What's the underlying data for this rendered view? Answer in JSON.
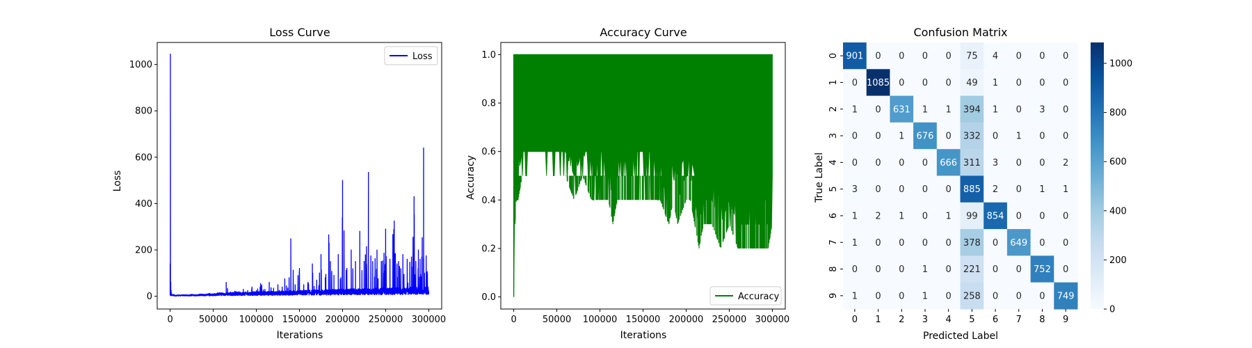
{
  "chart_data": [
    {
      "type": "line",
      "title": "Loss Curve",
      "xlabel": "Iterations",
      "ylabel": "Loss",
      "xlim": [
        -15000,
        315000
      ],
      "ylim": [
        -55,
        1095
      ],
      "xticks": [
        0,
        50000,
        100000,
        150000,
        200000,
        250000,
        300000
      ],
      "yticks": [
        0,
        200,
        400,
        600,
        800,
        1000
      ],
      "legend": "top-right",
      "grid": false,
      "series": [
        {
          "name": "Loss",
          "color": "#0000ff",
          "x": [
            0,
            300,
            700,
            1200,
            2000,
            3000,
            4000,
            6000,
            9000,
            12000,
            16000,
            20000,
            25000,
            30000,
            35000,
            40000,
            45000,
            50000,
            55000,
            60000,
            63000,
            65000,
            70000,
            75000,
            80000,
            85000,
            90000,
            95000,
            100000,
            105000,
            110000,
            115000,
            120000,
            125000,
            130000,
            133000,
            135000,
            138000,
            140000,
            145000,
            150000,
            155000,
            160000,
            165000,
            170000,
            175000,
            180000,
            184000,
            186000,
            190000,
            195000,
            198000,
            200000,
            205000,
            210000,
            215000,
            220000,
            225000,
            230000,
            235000,
            240000,
            245000,
            250000,
            255000,
            260000,
            265000,
            270000,
            275000,
            280000,
            283000,
            285000,
            288000,
            290000,
            292000,
            294000,
            295000,
            297000,
            300000
          ],
          "y": [
            140,
            1045,
            60,
            25,
            10,
            5,
            8,
            4,
            6,
            5,
            7,
            5,
            8,
            6,
            9,
            8,
            12,
            10,
            14,
            15,
            12,
            60,
            18,
            22,
            20,
            30,
            25,
            40,
            25,
            55,
            30,
            60,
            35,
            50,
            40,
            75,
            45,
            80,
            248,
            50,
            120,
            50,
            60,
            140,
            70,
            180,
            80,
            265,
            150,
            90,
            180,
            80,
            500,
            120,
            200,
            150,
            280,
            150,
            535,
            150,
            200,
            150,
            290,
            160,
            325,
            150,
            180,
            160,
            170,
            430,
            150,
            200,
            160,
            170,
            640,
            100,
            175,
            20
          ]
        }
      ]
    },
    {
      "type": "line",
      "title": "Accuracy Curve",
      "xlabel": "Iterations",
      "ylabel": "Accuracy",
      "xlim": [
        -15000,
        315000
      ],
      "ylim": [
        -0.05,
        1.05
      ],
      "xticks": [
        0,
        50000,
        100000,
        150000,
        200000,
        250000,
        300000
      ],
      "yticks": [
        0.0,
        0.2,
        0.4,
        0.6,
        0.8,
        1.0
      ],
      "legend": "bottom-right",
      "grid": false,
      "band_upper": 1.0,
      "series": [
        {
          "name": "Accuracy",
          "color": "#008000",
          "x": [
            0,
            500,
            1500,
            3000,
            5000,
            10000,
            15000,
            20000,
            30000,
            40000,
            50000,
            60000,
            70000,
            80000,
            90000,
            100000,
            110000,
            115000,
            120000,
            130000,
            140000,
            150000,
            160000,
            170000,
            180000,
            185000,
            190000,
            200000,
            205000,
            210000,
            215000,
            220000,
            230000,
            240000,
            250000,
            260000,
            270000,
            280000,
            290000,
            295000,
            300000
          ],
          "y": [
            0.0,
            0.4,
            0.3,
            0.4,
            0.4,
            0.5,
            0.5,
            0.5,
            0.5,
            0.5,
            0.5,
            0.5,
            0.4,
            0.5,
            0.4,
            0.4,
            0.4,
            0.3,
            0.4,
            0.4,
            0.4,
            0.4,
            0.4,
            0.4,
            0.3,
            0.4,
            0.3,
            0.4,
            0.4,
            0.3,
            0.2,
            0.3,
            0.3,
            0.2,
            0.3,
            0.2,
            0.2,
            0.2,
            0.2,
            0.2,
            0.3
          ]
        }
      ]
    },
    {
      "type": "heatmap",
      "title": "Confusion Matrix",
      "xlabel": "Predicted Label",
      "ylabel": "True Label",
      "x_categories": [
        "0",
        "1",
        "2",
        "3",
        "4",
        "5",
        "6",
        "7",
        "8",
        "9"
      ],
      "y_categories": [
        "0",
        "1",
        "2",
        "3",
        "4",
        "5",
        "6",
        "7",
        "8",
        "9"
      ],
      "values": [
        [
          901,
          0,
          0,
          0,
          0,
          75,
          4,
          0,
          0,
          0
        ],
        [
          0,
          1085,
          0,
          0,
          0,
          49,
          1,
          0,
          0,
          0
        ],
        [
          1,
          0,
          631,
          1,
          1,
          394,
          1,
          0,
          3,
          0
        ],
        [
          0,
          0,
          1,
          676,
          0,
          332,
          0,
          1,
          0,
          0
        ],
        [
          0,
          0,
          0,
          0,
          666,
          311,
          3,
          0,
          0,
          2
        ],
        [
          3,
          0,
          0,
          0,
          0,
          885,
          2,
          0,
          1,
          1
        ],
        [
          1,
          2,
          1,
          0,
          1,
          99,
          854,
          0,
          0,
          0
        ],
        [
          1,
          0,
          0,
          0,
          0,
          378,
          0,
          649,
          0,
          0
        ],
        [
          0,
          0,
          0,
          1,
          0,
          221,
          0,
          0,
          752,
          0
        ],
        [
          1,
          0,
          0,
          1,
          0,
          258,
          0,
          0,
          0,
          749
        ]
      ],
      "vmin": 0,
      "vmax": 1085,
      "colormap": "Blues",
      "colorbar_ticks": [
        0,
        200,
        400,
        600,
        800,
        1000
      ]
    }
  ]
}
